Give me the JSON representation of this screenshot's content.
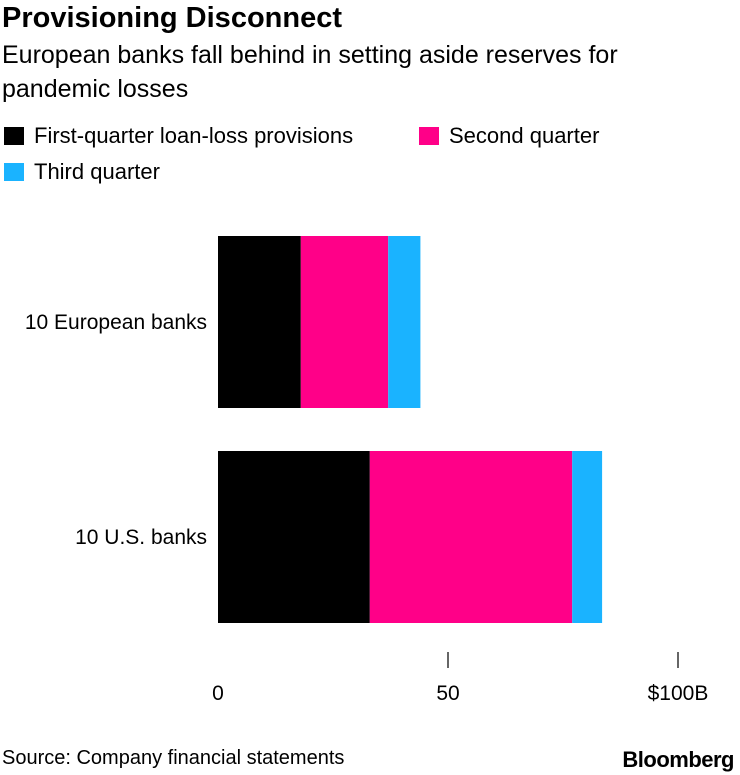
{
  "title": "Provisioning Disconnect",
  "subtitle": "European banks fall behind in setting aside reserves for pandemic losses",
  "source": "Source: Company financial statements",
  "brand": "Bloomberg",
  "chart_data": {
    "type": "bar",
    "orientation": "horizontal",
    "stacked": true,
    "categories": [
      "10 European banks",
      "10 U.S. banks"
    ],
    "series": [
      {
        "name": "First-quarter loan-loss provisions",
        "color": "#000000",
        "values": [
          18,
          33
        ]
      },
      {
        "name": "Second quarter",
        "color": "#ff0088",
        "values": [
          19,
          44
        ]
      },
      {
        "name": "Third quarter",
        "color": "#1ab3ff",
        "values": [
          7,
          6.5
        ]
      }
    ],
    "xlim": [
      0,
      100
    ],
    "x_ticks": [
      {
        "value": 0,
        "label": "0"
      },
      {
        "value": 50,
        "label": "50"
      },
      {
        "value": 100,
        "label": "$100B"
      }
    ],
    "grid": false,
    "legend_position": "top"
  }
}
